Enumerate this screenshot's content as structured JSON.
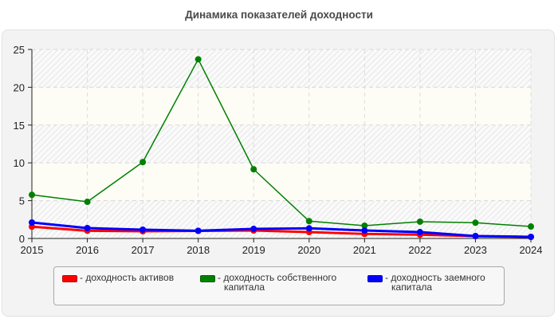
{
  "title": "Динамика показателей доходности",
  "chart_data": {
    "type": "line",
    "title": "Динамика показателей доходности",
    "xlabel": "",
    "ylabel": "",
    "x": [
      2015,
      2016,
      2017,
      2018,
      2019,
      2020,
      2021,
      2022,
      2023,
      2024
    ],
    "ylim": [
      0,
      25
    ],
    "yticks": [
      0,
      5,
      10,
      15,
      20,
      25
    ],
    "grid": true,
    "legend_position": "bottom",
    "series": [
      {
        "name": "доходность активов",
        "color": "#ff0000",
        "values": [
          1.55,
          1.02,
          0.95,
          1.0,
          1.05,
          0.84,
          0.6,
          0.5,
          0.3,
          0.2
        ]
      },
      {
        "name": "доходность собственного капитала",
        "color": "#008000",
        "values": [
          5.77,
          4.85,
          10.1,
          23.7,
          9.15,
          2.29,
          1.69,
          2.22,
          2.08,
          1.58
        ]
      },
      {
        "name": "доходность заемного капитала",
        "color": "#0000ff",
        "values": [
          2.11,
          1.37,
          1.16,
          1.02,
          1.27,
          1.34,
          1.05,
          0.84,
          0.32,
          0.21
        ]
      }
    ]
  },
  "legend": {
    "items": [
      {
        "label_line1": "- доходность активов",
        "label_line2": "",
        "color": "#ff0000"
      },
      {
        "label_line1": "- доходность собственного",
        "label_line2": "капитала",
        "color": "#008000"
      },
      {
        "label_line1": "- доходность заемного",
        "label_line2": "капитала",
        "color": "#0000ff"
      }
    ]
  }
}
